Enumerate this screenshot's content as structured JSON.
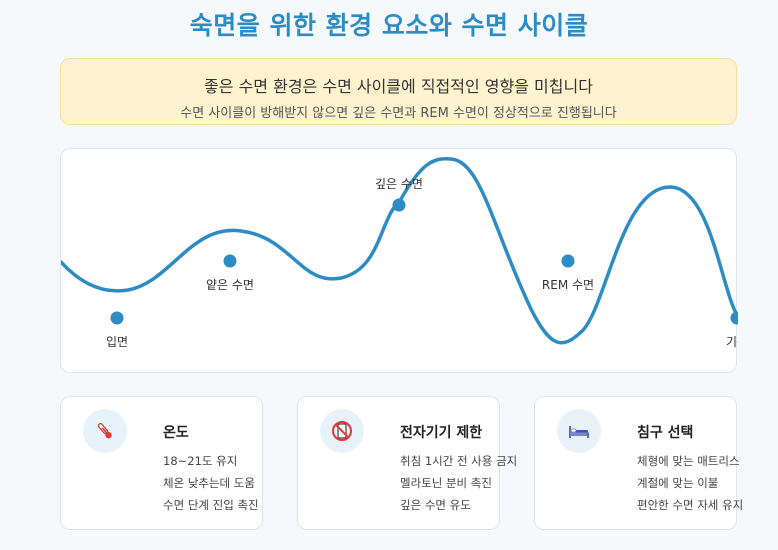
{
  "title": "숙면을 위한 환경 요소와 수면 사이클",
  "banner": {
    "headline": "좋은 수면 환경은 수면 사이클에 직접적인 영향을 미칩니다",
    "subline": "수면 사이클이 방해받지 않으면 깊은 수면과 REM 수면이 정상적으로 진행됩니다"
  },
  "chart_data": {
    "type": "line",
    "curve_color": "#2e8cc4",
    "points": [
      {
        "label": "입면"
      },
      {
        "label": "얕은 수면"
      },
      {
        "label": "깊은 수면"
      },
      {
        "label": "REM 수면"
      },
      {
        "label": "기상"
      }
    ]
  },
  "cards": [
    {
      "icon": "thermometer-icon",
      "title": "온도",
      "lines": [
        "18~21도 유지",
        "체온 낮추는데 도움",
        "수면 단계 진입 촉진"
      ]
    },
    {
      "icon": "no-phone-icon",
      "title": "전자기기 제한",
      "lines": [
        "취침 1시간 전 사용 금지",
        "멜라토닌 분비 촉진",
        "깊은 수면 유도"
      ]
    },
    {
      "icon": "bed-icon",
      "title": "침구 선택",
      "lines": [
        "체형에 맞는 매트리스",
        "계절에 맞는 이불",
        "편안한 수면 자세 유지"
      ]
    }
  ]
}
